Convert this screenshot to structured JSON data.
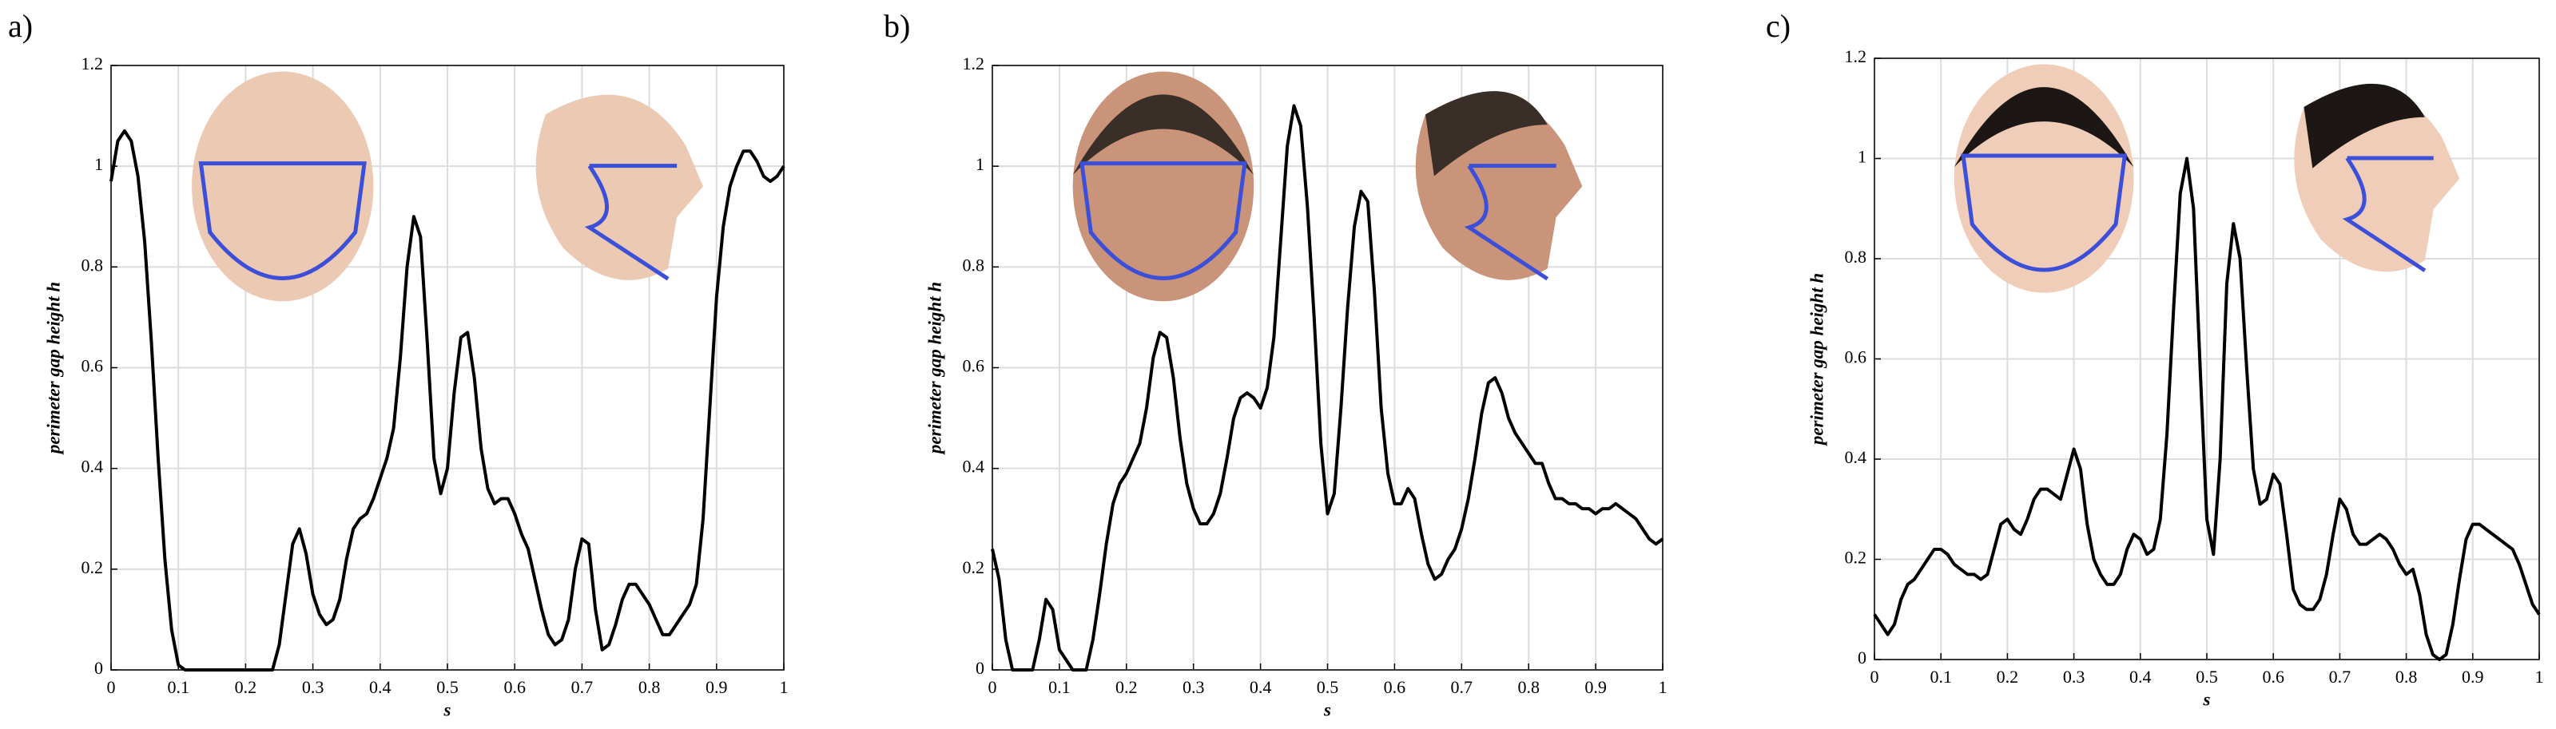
{
  "chart_data": [
    {
      "type": "line",
      "panel_label": "a)",
      "xlabel": "s",
      "ylabel": "perimeter gap height h",
      "x": [
        0,
        0.01,
        0.02,
        0.03,
        0.04,
        0.05,
        0.06,
        0.07,
        0.08,
        0.09,
        0.1,
        0.11,
        0.12,
        0.13,
        0.14,
        0.15,
        0.16,
        0.17,
        0.18,
        0.19,
        0.2,
        0.21,
        0.22,
        0.23,
        0.24,
        0.25,
        0.26,
        0.27,
        0.28,
        0.29,
        0.3,
        0.31,
        0.32,
        0.33,
        0.34,
        0.35,
        0.36,
        0.37,
        0.38,
        0.39,
        0.4,
        0.41,
        0.42,
        0.43,
        0.44,
        0.45,
        0.46,
        0.47,
        0.48,
        0.49,
        0.5,
        0.51,
        0.52,
        0.53,
        0.54,
        0.55,
        0.56,
        0.57,
        0.58,
        0.59,
        0.6,
        0.61,
        0.62,
        0.63,
        0.64,
        0.65,
        0.66,
        0.67,
        0.68,
        0.69,
        0.7,
        0.71,
        0.72,
        0.73,
        0.74,
        0.75,
        0.76,
        0.77,
        0.78,
        0.79,
        0.8,
        0.81,
        0.82,
        0.83,
        0.84,
        0.85,
        0.86,
        0.87,
        0.88,
        0.89,
        0.9,
        0.91,
        0.92,
        0.93,
        0.94,
        0.95,
        0.96,
        0.97,
        0.98,
        0.99,
        1
      ],
      "series": [
        {
          "color": "#000000",
          "values": [
            0.97,
            1.05,
            1.07,
            1.05,
            0.98,
            0.85,
            0.65,
            0.42,
            0.22,
            0.08,
            0.01,
            0,
            0,
            0,
            0,
            0,
            0,
            0,
            0,
            0,
            0,
            0,
            0,
            0,
            0,
            0.05,
            0.15,
            0.25,
            0.28,
            0.23,
            0.15,
            0.11,
            0.09,
            0.1,
            0.14,
            0.22,
            0.28,
            0.3,
            0.31,
            0.34,
            0.38,
            0.42,
            0.48,
            0.62,
            0.8,
            0.9,
            0.86,
            0.65,
            0.42,
            0.35,
            0.4,
            0.55,
            0.66,
            0.67,
            0.58,
            0.44,
            0.36,
            0.33,
            0.34,
            0.34,
            0.31,
            0.27,
            0.24,
            0.18,
            0.12,
            0.07,
            0.05,
            0.06,
            0.1,
            0.2,
            0.26,
            0.25,
            0.12,
            0.04,
            0.05,
            0.09,
            0.14,
            0.17,
            0.17,
            0.15,
            0.13,
            0.1,
            0.07,
            0.07,
            0.09,
            0.11,
            0.13,
            0.17,
            0.3,
            0.52,
            0.74,
            0.88,
            0.96,
            1.0,
            1.03,
            1.03,
            1.01,
            0.98,
            0.97,
            0.98,
            1.0
          ]
        }
      ],
      "xlim": [
        0,
        1
      ],
      "ylim": [
        0,
        1.2
      ],
      "xticks": [
        0,
        0.1,
        0.2,
        0.3,
        0.4,
        0.5,
        0.6,
        0.7,
        0.8,
        0.9,
        1
      ],
      "yticks": [
        0,
        0.2,
        0.4,
        0.6,
        0.8,
        1,
        1.2
      ],
      "grid": true
    },
    {
      "type": "line",
      "panel_label": "b)",
      "xlabel": "s",
      "ylabel": "perimeter gap height h",
      "x": [
        0,
        0.01,
        0.02,
        0.03,
        0.04,
        0.05,
        0.06,
        0.07,
        0.08,
        0.09,
        0.1,
        0.11,
        0.12,
        0.13,
        0.14,
        0.15,
        0.16,
        0.17,
        0.18,
        0.19,
        0.2,
        0.21,
        0.22,
        0.23,
        0.24,
        0.25,
        0.26,
        0.27,
        0.28,
        0.29,
        0.3,
        0.31,
        0.32,
        0.33,
        0.34,
        0.35,
        0.36,
        0.37,
        0.38,
        0.39,
        0.4,
        0.41,
        0.42,
        0.43,
        0.44,
        0.45,
        0.46,
        0.47,
        0.48,
        0.49,
        0.5,
        0.51,
        0.52,
        0.53,
        0.54,
        0.55,
        0.56,
        0.57,
        0.58,
        0.59,
        0.6,
        0.61,
        0.62,
        0.63,
        0.64,
        0.65,
        0.66,
        0.67,
        0.68,
        0.69,
        0.7,
        0.71,
        0.72,
        0.73,
        0.74,
        0.75,
        0.76,
        0.77,
        0.78,
        0.79,
        0.8,
        0.81,
        0.82,
        0.83,
        0.84,
        0.85,
        0.86,
        0.87,
        0.88,
        0.89,
        0.9,
        0.91,
        0.92,
        0.93,
        0.94,
        0.95,
        0.96,
        0.97,
        0.98,
        0.99,
        1
      ],
      "series": [
        {
          "color": "#000000",
          "values": [
            0.24,
            0.18,
            0.06,
            0,
            0,
            0,
            0,
            0.06,
            0.14,
            0.12,
            0.04,
            0.02,
            0,
            0,
            0,
            0.06,
            0.15,
            0.25,
            0.33,
            0.37,
            0.39,
            0.42,
            0.45,
            0.52,
            0.62,
            0.67,
            0.66,
            0.58,
            0.46,
            0.37,
            0.32,
            0.29,
            0.29,
            0.31,
            0.35,
            0.42,
            0.5,
            0.54,
            0.55,
            0.54,
            0.52,
            0.56,
            0.66,
            0.85,
            1.04,
            1.12,
            1.08,
            0.92,
            0.7,
            0.45,
            0.31,
            0.35,
            0.52,
            0.72,
            0.88,
            0.95,
            0.93,
            0.75,
            0.52,
            0.39,
            0.33,
            0.33,
            0.36,
            0.34,
            0.27,
            0.21,
            0.18,
            0.19,
            0.22,
            0.24,
            0.28,
            0.34,
            0.42,
            0.51,
            0.57,
            0.58,
            0.55,
            0.5,
            0.47,
            0.45,
            0.43,
            0.41,
            0.41,
            0.37,
            0.34,
            0.34,
            0.33,
            0.33,
            0.32,
            0.32,
            0.31,
            0.32,
            0.32,
            0.33,
            0.32,
            0.31,
            0.3,
            0.28,
            0.26,
            0.25,
            0.26
          ]
        }
      ],
      "xlim": [
        0,
        1
      ],
      "ylim": [
        0,
        1.2
      ],
      "xticks": [
        0,
        0.1,
        0.2,
        0.3,
        0.4,
        0.5,
        0.6,
        0.7,
        0.8,
        0.9,
        1
      ],
      "yticks": [
        0,
        0.2,
        0.4,
        0.6,
        0.8,
        1,
        1.2
      ],
      "grid": true
    },
    {
      "type": "line",
      "panel_label": "c)",
      "xlabel": "s",
      "ylabel": "perimeter gap height h",
      "x": [
        0,
        0.01,
        0.02,
        0.03,
        0.04,
        0.05,
        0.06,
        0.07,
        0.08,
        0.09,
        0.1,
        0.11,
        0.12,
        0.13,
        0.14,
        0.15,
        0.16,
        0.17,
        0.18,
        0.19,
        0.2,
        0.21,
        0.22,
        0.23,
        0.24,
        0.25,
        0.26,
        0.27,
        0.28,
        0.29,
        0.3,
        0.31,
        0.32,
        0.33,
        0.34,
        0.35,
        0.36,
        0.37,
        0.38,
        0.39,
        0.4,
        0.41,
        0.42,
        0.43,
        0.44,
        0.45,
        0.46,
        0.47,
        0.48,
        0.49,
        0.5,
        0.51,
        0.52,
        0.53,
        0.54,
        0.55,
        0.56,
        0.57,
        0.58,
        0.59,
        0.6,
        0.61,
        0.62,
        0.63,
        0.64,
        0.65,
        0.66,
        0.67,
        0.68,
        0.69,
        0.7,
        0.71,
        0.72,
        0.73,
        0.74,
        0.75,
        0.76,
        0.77,
        0.78,
        0.79,
        0.8,
        0.81,
        0.82,
        0.83,
        0.84,
        0.85,
        0.86,
        0.87,
        0.88,
        0.89,
        0.9,
        0.91,
        0.92,
        0.93,
        0.94,
        0.95,
        0.96,
        0.97,
        0.98,
        0.99,
        1
      ],
      "series": [
        {
          "color": "#000000",
          "values": [
            0.09,
            0.07,
            0.05,
            0.07,
            0.12,
            0.15,
            0.16,
            0.18,
            0.2,
            0.22,
            0.22,
            0.21,
            0.19,
            0.18,
            0.17,
            0.17,
            0.16,
            0.17,
            0.22,
            0.27,
            0.28,
            0.26,
            0.25,
            0.28,
            0.32,
            0.34,
            0.34,
            0.33,
            0.32,
            0.37,
            0.42,
            0.38,
            0.27,
            0.2,
            0.17,
            0.15,
            0.15,
            0.17,
            0.22,
            0.25,
            0.24,
            0.21,
            0.22,
            0.28,
            0.45,
            0.7,
            0.93,
            1.0,
            0.9,
            0.58,
            0.28,
            0.21,
            0.4,
            0.75,
            0.87,
            0.8,
            0.58,
            0.38,
            0.31,
            0.32,
            0.37,
            0.35,
            0.25,
            0.14,
            0.11,
            0.1,
            0.1,
            0.12,
            0.17,
            0.25,
            0.32,
            0.3,
            0.25,
            0.23,
            0.23,
            0.24,
            0.25,
            0.24,
            0.22,
            0.19,
            0.17,
            0.18,
            0.13,
            0.05,
            0.01,
            0,
            0.01,
            0.07,
            0.16,
            0.24,
            0.27,
            0.27,
            0.26,
            0.25,
            0.24,
            0.23,
            0.22,
            0.19,
            0.15,
            0.11,
            0.09
          ]
        }
      ],
      "xlim": [
        0,
        1
      ],
      "ylim": [
        0,
        1.2
      ],
      "xticks": [
        0,
        0.1,
        0.2,
        0.3,
        0.4,
        0.5,
        0.6,
        0.7,
        0.8,
        0.9,
        1
      ],
      "yticks": [
        0,
        0.2,
        0.4,
        0.6,
        0.8,
        1,
        1.2
      ],
      "grid": true
    }
  ]
}
